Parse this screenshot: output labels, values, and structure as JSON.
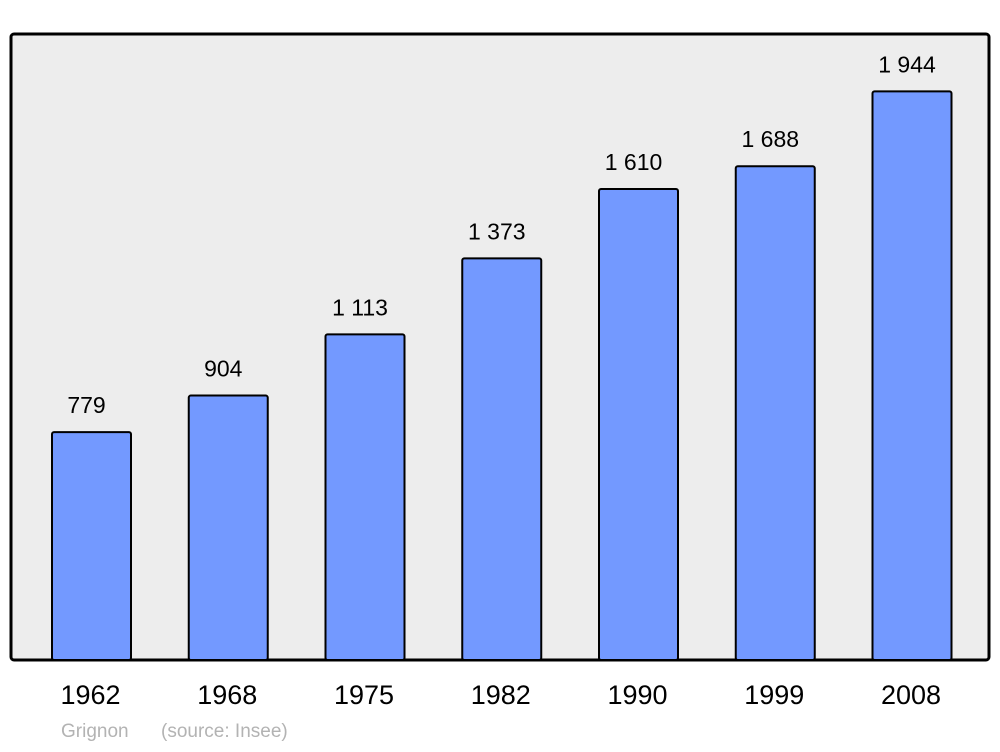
{
  "chart_data": {
    "type": "bar",
    "categories": [
      "1962",
      "1968",
      "1975",
      "1982",
      "1990",
      "1999",
      "2008"
    ],
    "values": [
      779,
      904,
      1113,
      1373,
      1610,
      1688,
      1944
    ],
    "value_labels": [
      "779",
      "904",
      "1 113",
      "1 373",
      "1 610",
      "1 688",
      "1 944"
    ],
    "title": "",
    "xlabel": "",
    "ylabel": "",
    "ylim": [
      0,
      2140
    ],
    "grid": false,
    "bar_color": "#7399ff",
    "background_color": "#ededed"
  },
  "footer": {
    "place": "Grignon",
    "source": "(source: Insee)"
  }
}
